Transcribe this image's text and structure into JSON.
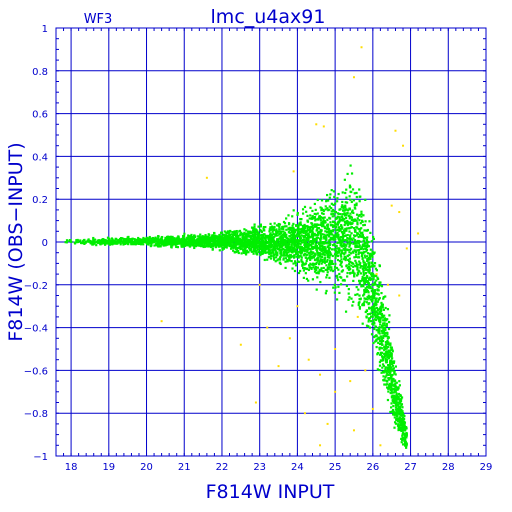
{
  "chart_data": {
    "type": "scatter",
    "title": "lmc_u4ax91",
    "subtitle": "WF3",
    "xlabel": "F814W  INPUT",
    "ylabel": "F814W (OBS−INPUT)",
    "xlim": [
      17.6,
      29
    ],
    "ylim": [
      -1,
      1
    ],
    "x_ticks": [
      18,
      19,
      20,
      21,
      22,
      23,
      24,
      25,
      26,
      27,
      28,
      29
    ],
    "x_tick_labels": [
      "18",
      "19",
      "20",
      "21",
      "22",
      "23",
      "24",
      "25",
      "26",
      "27",
      "28",
      "29"
    ],
    "y_ticks": [
      1,
      0.8,
      0.6,
      0.4,
      0.2,
      0,
      -0.2,
      -0.4,
      -0.6,
      -0.8,
      -1
    ],
    "y_tick_labels": [
      "1",
      "0.8",
      "0.6",
      "0.4",
      "0.2",
      "0",
      "−0.2",
      "−0.4",
      "−0.6",
      "−0.8",
      "−1"
    ],
    "grid": true,
    "series": [
      {
        "color": "#00ee00",
        "values": [],
        "envelope": [
          {
            "x": 17.8,
            "y_low": -0.01,
            "y_high": 0.015
          },
          {
            "x": 19.0,
            "y_low": -0.02,
            "y_high": 0.025
          },
          {
            "x": 20.0,
            "y_low": -0.025,
            "y_high": 0.03
          },
          {
            "x": 21.0,
            "y_low": -0.035,
            "y_high": 0.04
          },
          {
            "x": 22.0,
            "y_low": -0.05,
            "y_high": 0.06
          },
          {
            "x": 23.0,
            "y_low": -0.1,
            "y_high": 0.1
          },
          {
            "x": 24.0,
            "y_low": -0.17,
            "y_high": 0.16
          },
          {
            "x": 24.8,
            "y_low": -0.28,
            "y_high": 0.28
          },
          {
            "x": 25.3,
            "y_low": -0.35,
            "y_high": 0.42
          },
          {
            "x": 25.7,
            "y_low": -0.45,
            "y_high": 0.38
          },
          {
            "x": 26.0,
            "y_low": -0.55,
            "y_high": 0.1
          },
          {
            "x": 26.3,
            "y_low": -0.75,
            "y_high": -0.15
          },
          {
            "x": 26.6,
            "y_low": -0.95,
            "y_high": -0.5
          },
          {
            "x": 26.9,
            "y_low": -1.0,
            "y_high": -0.85
          }
        ]
      },
      {
        "color": "#ffdd00",
        "values": [
          [
            25.7,
            0.91
          ],
          [
            25.5,
            0.77
          ],
          [
            24.5,
            0.55
          ],
          [
            24.7,
            0.54
          ],
          [
            26.6,
            0.52
          ],
          [
            26.8,
            0.45
          ],
          [
            21.6,
            0.3
          ],
          [
            23.9,
            0.33
          ],
          [
            26.5,
            0.17
          ],
          [
            26.7,
            0.14
          ],
          [
            26.9,
            -0.03
          ],
          [
            27.2,
            0.04
          ],
          [
            26.1,
            -0.15
          ],
          [
            26.4,
            -0.2
          ],
          [
            26.7,
            -0.25
          ],
          [
            20.4,
            -0.37
          ],
          [
            22.5,
            -0.48
          ],
          [
            23.2,
            -0.4
          ],
          [
            23.8,
            -0.45
          ],
          [
            24.3,
            -0.55
          ],
          [
            24.6,
            -0.62
          ],
          [
            25.0,
            -0.7
          ],
          [
            25.4,
            -0.65
          ],
          [
            25.8,
            -0.6
          ],
          [
            23.5,
            -0.58
          ],
          [
            22.9,
            -0.75
          ],
          [
            24.2,
            -0.8
          ],
          [
            24.8,
            -0.85
          ],
          [
            25.5,
            -0.88
          ],
          [
            26.0,
            -0.78
          ],
          [
            25.0,
            -0.5
          ],
          [
            24.0,
            -0.3
          ],
          [
            25.6,
            -0.35
          ],
          [
            23.0,
            -0.2
          ],
          [
            24.6,
            -0.95
          ],
          [
            26.2,
            -0.95
          ]
        ]
      }
    ]
  }
}
